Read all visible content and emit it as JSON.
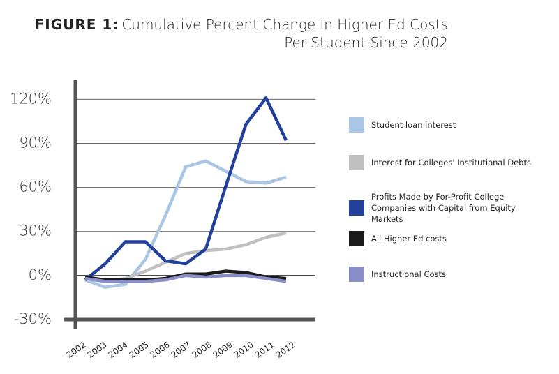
{
  "chart_data": {
    "type": "line",
    "title_label": "FIGURE 1:",
    "title": "Cumulative Percent Change in Higher Ed Costs Per Student Since 2002",
    "categories": [
      "2002",
      "2003",
      "2004",
      "2005",
      "2006",
      "2007",
      "2008",
      "2009",
      "2010",
      "2011",
      "2012"
    ],
    "ylim": [
      -30,
      133
    ],
    "yticks": [
      {
        "value": -30,
        "label": "-30%"
      },
      {
        "value": 0,
        "label": "0%"
      },
      {
        "value": 30,
        "label": "30%"
      },
      {
        "value": 60,
        "label": "60%"
      },
      {
        "value": 90,
        "label": "90%"
      },
      {
        "value": 120,
        "label": "120%"
      }
    ],
    "grid": true,
    "legend": "right",
    "series": [
      {
        "name": "Student loan interest",
        "color": "#a9c6e4",
        "values": [
          -3,
          -8,
          -6,
          11,
          41,
          74,
          78,
          71,
          64,
          63,
          67
        ]
      },
      {
        "name": "Interest for Colleges' Institutional Debts",
        "color": "#c0c0c0",
        "values": [
          -2,
          -4,
          -2,
          3,
          9,
          15,
          17,
          18,
          21,
          26,
          29
        ]
      },
      {
        "name": "Profits Made by For-Profit College Companies with Capital from Equity Markets",
        "color": "#23409a",
        "values": [
          -3,
          8,
          23,
          23,
          10,
          8,
          18,
          61,
          103,
          121,
          92
        ]
      },
      {
        "name": "All Higher Ed costs",
        "color": "#1a1a1a",
        "values": [
          -1,
          -3,
          -3,
          -3,
          -2,
          1,
          1,
          3,
          2,
          -1,
          -2
        ]
      },
      {
        "name": "Instructional Costs",
        "color": "#8a8ec8",
        "values": [
          -2,
          -4,
          -4,
          -4,
          -3,
          0,
          -1,
          0,
          0,
          -2,
          -4
        ]
      }
    ]
  }
}
